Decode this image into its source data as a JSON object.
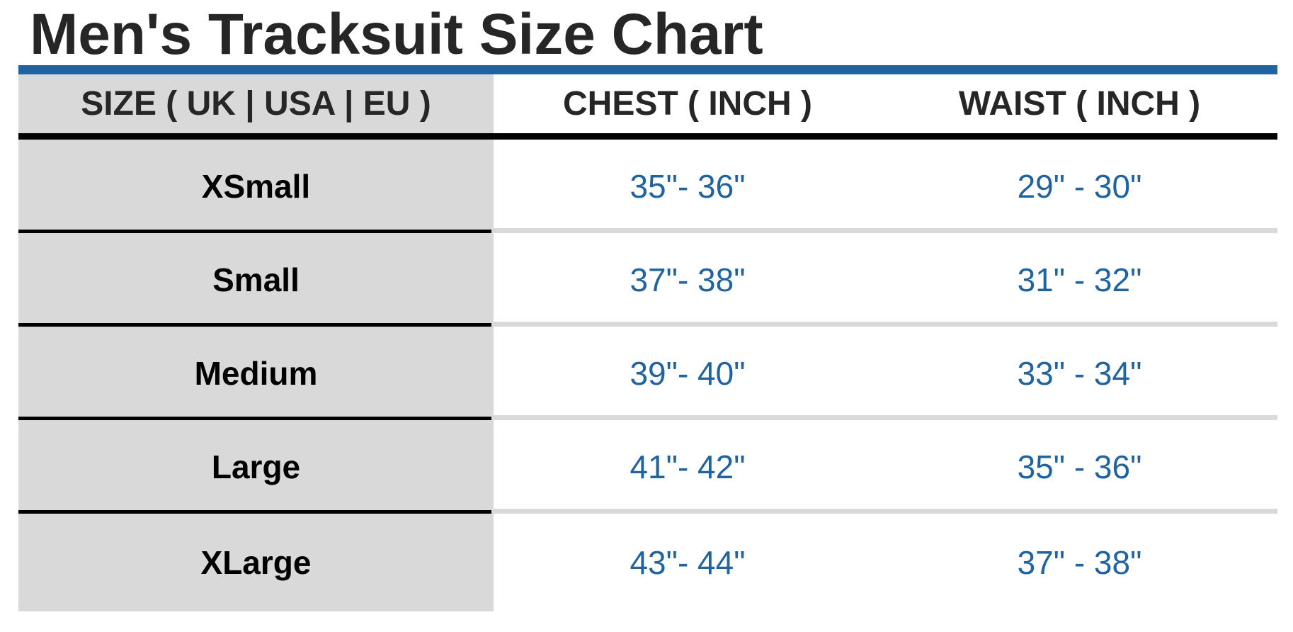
{
  "title": "Men's Tracksuit Size Chart",
  "colors": {
    "accent": "#1f64a0",
    "size_column_bg": "#d9d9d9",
    "value_text": "#1f64a0"
  },
  "table": {
    "headers": [
      "SIZE ( UK | USA | EU )",
      "CHEST ( INCH )",
      "WAIST ( INCH )"
    ],
    "rows": [
      {
        "size": "XSmall",
        "chest": "35\"- 36\"",
        "waist": "29\" - 30\""
      },
      {
        "size": "Small",
        "chest": "37\"- 38\"",
        "waist": "31\" - 32\""
      },
      {
        "size": "Medium",
        "chest": "39\"- 40\"",
        "waist": "33\" - 34\""
      },
      {
        "size": "Large",
        "chest": "41\"- 42\"",
        "waist": "35\" - 36\""
      },
      {
        "size": "XLarge",
        "chest": "43\"- 44\"",
        "waist": "37\" - 38\""
      }
    ]
  }
}
